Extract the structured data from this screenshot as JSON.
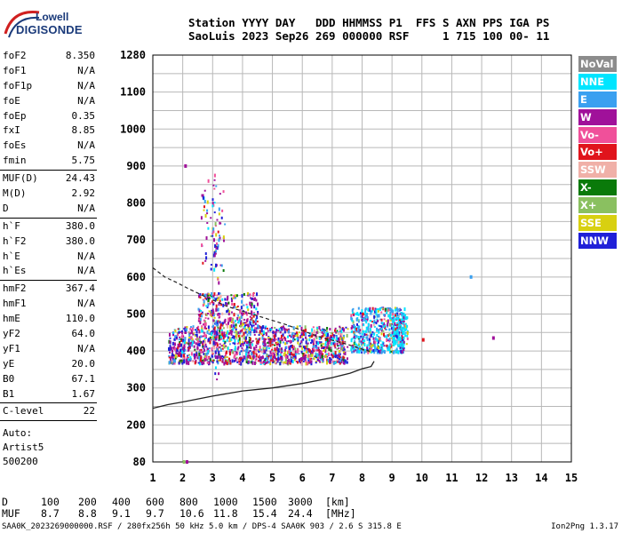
{
  "logo": {
    "line1": "Lowell",
    "line2": "DIGISONDE"
  },
  "header": {
    "line1": "Station YYYY DAY   DDD HHMMSS P1  FFS S AXN PPS IGA PS",
    "line2": "SaoLuis 2023 Sep26 269 000000 RSF     1 715 100 00- 11"
  },
  "params": [
    {
      "name": "foF2",
      "value": "8.350"
    },
    {
      "name": "foF1",
      "value": "N/A"
    },
    {
      "name": "foF1p",
      "value": "N/A"
    },
    {
      "name": "foE",
      "value": "N/A"
    },
    {
      "name": "foEp",
      "value": "0.35"
    },
    {
      "name": "fxI",
      "value": "8.85"
    },
    {
      "name": "foEs",
      "value": "N/A"
    },
    {
      "name": "fmin",
      "value": "5.75"
    },
    {
      "sep": true
    },
    {
      "name": "MUF(D)",
      "value": "24.43"
    },
    {
      "name": "M(D)",
      "value": "2.92"
    },
    {
      "name": "D",
      "value": "N/A"
    },
    {
      "sep": true
    },
    {
      "name": "h`F",
      "value": "380.0"
    },
    {
      "name": "h`F2",
      "value": "380.0"
    },
    {
      "name": "h`E",
      "value": "N/A"
    },
    {
      "name": "h`Es",
      "value": "N/A"
    },
    {
      "sep": true
    },
    {
      "name": "hmF2",
      "value": "367.4"
    },
    {
      "name": "hmF1",
      "value": "N/A"
    },
    {
      "name": "hmE",
      "value": "110.0"
    },
    {
      "name": "yF2",
      "value": "64.0"
    },
    {
      "name": "yF1",
      "value": "N/A"
    },
    {
      "name": "yE",
      "value": "20.0"
    },
    {
      "name": "B0",
      "value": "67.1"
    },
    {
      "name": "B1",
      "value": "1.67"
    },
    {
      "sep": true
    },
    {
      "name": "C-level",
      "value": "22"
    },
    {
      "sep": true
    }
  ],
  "auto": {
    "line1": "Auto:",
    "line2": "Artist5",
    "line3": "500200"
  },
  "legend": [
    {
      "label": "NoVal",
      "color": "#8c8c8c"
    },
    {
      "label": "NNE",
      "color": "#00e5ff"
    },
    {
      "label": "E",
      "color": "#3aa0f0"
    },
    {
      "label": "W",
      "color": "#a0119a"
    },
    {
      "label": "Vo-",
      "color": "#f0509a"
    },
    {
      "label": "Vo+",
      "color": "#e0141c"
    },
    {
      "label": "SSW",
      "color": "#f0b0a8"
    },
    {
      "label": "X-",
      "color": "#0a7a0a"
    },
    {
      "label": "X+",
      "color": "#8ac060"
    },
    {
      "label": "SSE",
      "color": "#d8d010"
    },
    {
      "label": "NNW",
      "color": "#2020d8"
    }
  ],
  "chart_data": {
    "type": "scatter",
    "xlim": [
      1,
      15
    ],
    "ylim_labels": [
      "1280",
      "1100",
      "1000",
      "900",
      "800",
      "700",
      "600",
      "500",
      "400",
      "300",
      "200",
      "80"
    ],
    "x_ticks": [
      "1",
      "2",
      "3",
      "4",
      "5",
      "6",
      "7",
      "8",
      "9",
      "10",
      "11",
      "12",
      "13",
      "14",
      "15"
    ],
    "grid": true,
    "trace_lower": [
      [
        1,
        245
      ],
      [
        1.5,
        255
      ],
      [
        2,
        262
      ],
      [
        3,
        278
      ],
      [
        4,
        292
      ],
      [
        5,
        300
      ],
      [
        6,
        312
      ],
      [
        7,
        328
      ],
      [
        7.6,
        340
      ],
      [
        8,
        352
      ],
      [
        8.3,
        358
      ],
      [
        8.4,
        372
      ]
    ],
    "trace_dashed": [
      [
        1,
        625
      ],
      [
        1.4,
        600
      ],
      [
        1.8,
        585
      ],
      [
        2.2,
        568
      ],
      [
        2.8,
        545
      ],
      [
        3.5,
        520
      ],
      [
        4.5,
        495
      ],
      [
        5.5,
        470
      ],
      [
        6.5,
        440
      ],
      [
        7.5,
        418
      ],
      [
        8,
        405
      ],
      [
        8.3,
        398
      ]
    ],
    "clusters": [
      {
        "x": [
          1.5,
          7.5
        ],
        "y": [
          370,
          470
        ],
        "n": 1400
      },
      {
        "x": [
          2.5,
          4.5
        ],
        "y": [
          470,
          560
        ],
        "n": 260
      },
      {
        "x": [
          7.6,
          9.4
        ],
        "y": [
          400,
          520
        ],
        "n": 520
      },
      {
        "x": [
          2.6,
          3.4
        ],
        "y": [
          620,
          870
        ],
        "n": 70
      },
      {
        "x": [
          3.0,
          3.2
        ],
        "y": [
          300,
          900
        ],
        "n": 30
      },
      {
        "x": [
          9.0,
          9.5
        ],
        "y": [
          420,
          500
        ],
        "n": 110
      }
    ],
    "isolated_points": [
      {
        "x": 2.05,
        "y": 900,
        "s": "W"
      },
      {
        "x": 10.0,
        "y": 430,
        "s": "Vo+"
      },
      {
        "x": 12.35,
        "y": 435,
        "s": "W"
      },
      {
        "x": 11.6,
        "y": 600,
        "s": "E"
      },
      {
        "x": 2.0,
        "y": 80,
        "s": "X+"
      },
      {
        "x": 2.1,
        "y": 80,
        "s": "W"
      }
    ]
  },
  "d_muf": {
    "d_label": "D",
    "d_values": [
      "100",
      "200",
      "400",
      "600",
      "800",
      "1000",
      "1500",
      "3000"
    ],
    "d_unit": "[km]",
    "muf_label": "MUF",
    "muf_values": [
      "8.7",
      "8.8",
      "9.1",
      "9.7",
      "10.6",
      "11.8",
      "15.4",
      "24.4"
    ],
    "muf_unit": "[MHz]"
  },
  "footer": {
    "left": "SAA0K_2023269000000.RSF / 280fx256h 50 kHz 5.0 km / DPS-4 SAA0K 903 / 2.6 S 315.8 E",
    "right": "Ion2Png 1.3.17"
  }
}
